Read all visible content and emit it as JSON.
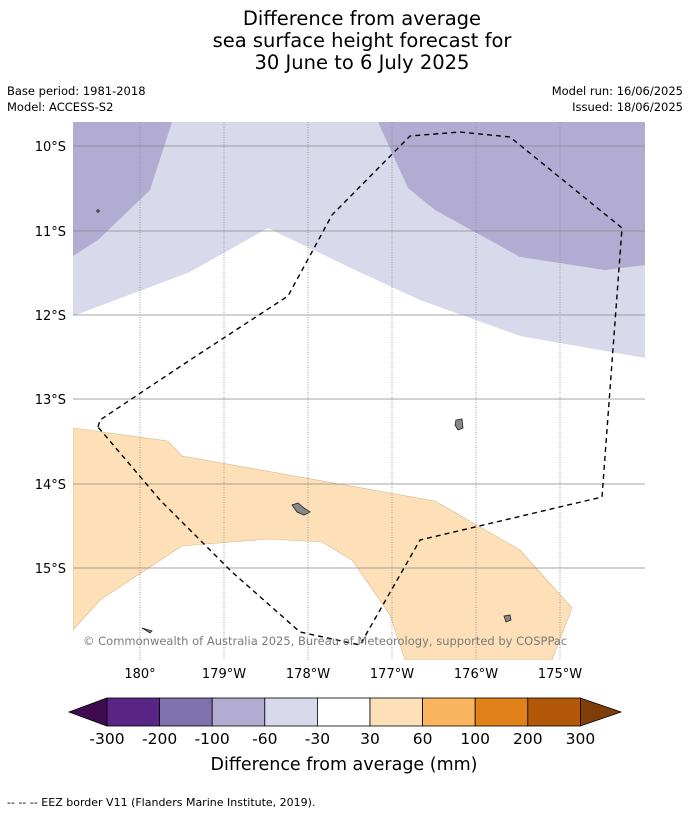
{
  "title": {
    "line1": "Difference from average",
    "line2": "sea surface height forecast for",
    "line3": "30 June to 6 July 2025"
  },
  "meta": {
    "base_period": "Base period: 1981-2018",
    "model": "Model: ACCESS-S2",
    "model_run": "Model run: 16/06/2025",
    "issued": "Issued: 18/06/2025"
  },
  "map": {
    "lat_labels": [
      "10°S",
      "11°S",
      "12°S",
      "13°S",
      "14°S",
      "15°S"
    ],
    "lon_labels": [
      "180°",
      "179°W",
      "178°W",
      "177°W",
      "176°W",
      "175°W"
    ],
    "copyright": "© Commonwealth of Australia 2025, Bureau of Meteorology, supported by COSPPac",
    "colors": {
      "band_m60_m100": "#b2acd3",
      "band_m30_m60": "#d8d9ea",
      "band_30_60": "#fde0b8",
      "land": "#888888",
      "grid": "#888888"
    }
  },
  "colorbar": {
    "tick_labels": [
      "-300",
      "-200",
      "-100",
      "-60",
      "-30",
      "30",
      "60",
      "100",
      "200",
      "300"
    ],
    "colors": [
      "#3f0a4f",
      "#5b2585",
      "#7f71ad",
      "#b2acd3",
      "#d8d9ea",
      "#ffffff",
      "#fde0b8",
      "#f9b55e",
      "#e2811a",
      "#b35708",
      "#7f3d0a"
    ],
    "label": "Difference from average (mm)"
  },
  "footer": {
    "legend_text": "--  --  -- EEZ border V11 (Flanders Marine Institute, 2019)."
  }
}
